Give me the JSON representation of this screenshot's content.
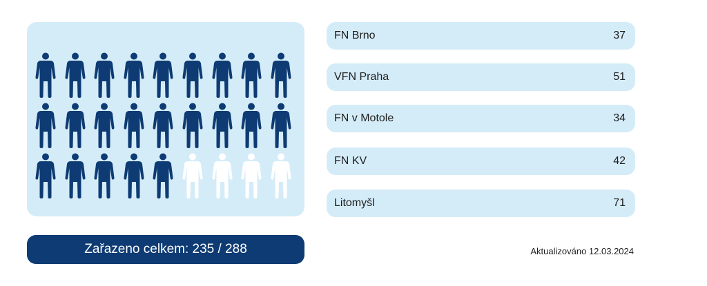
{
  "colors": {
    "filled": "#0e3b73",
    "empty": "#ffffff",
    "panel": "#d4ecf8"
  },
  "people": {
    "filled": 23,
    "total": 27,
    "icon": "person-icon"
  },
  "summary": {
    "label": "Zařazeno celkem: 235 / 288"
  },
  "hospitals": [
    {
      "name": "FN Brno",
      "count": "37"
    },
    {
      "name": "VFN Praha",
      "count": "51"
    },
    {
      "name": "FN v Motole",
      "count": "34"
    },
    {
      "name": "FN KV",
      "count": "42"
    },
    {
      "name": "Litomyšl",
      "count": "71"
    }
  ],
  "updated": "Aktualizováno 12.03.2024"
}
